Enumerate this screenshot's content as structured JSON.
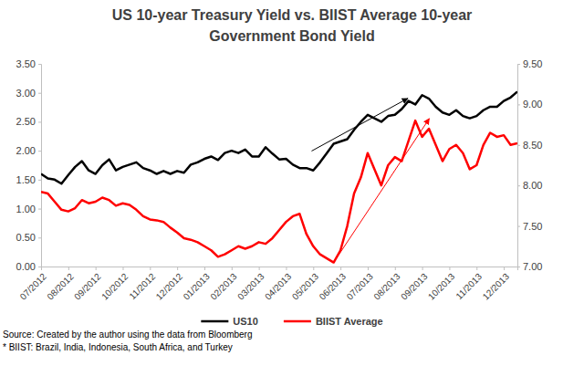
{
  "chart_data": {
    "type": "line",
    "title": "US 10-year Treasury Yield vs. BIIST Average 10-year\nGovernment Bond Yield",
    "notes": [
      "Source: Created by the author using the data from Bloomberg",
      "* BIIST: Brazil, India, Indonesia, South Africa, and Turkey"
    ],
    "categories": [
      "07/2012",
      null,
      null,
      null,
      "08/2012",
      null,
      null,
      null,
      "09/2012",
      null,
      null,
      null,
      "10/2012",
      null,
      null,
      null,
      "11/2012",
      null,
      null,
      null,
      "12/2012",
      null,
      null,
      null,
      "01/2013",
      null,
      null,
      null,
      "02/2013",
      null,
      null,
      null,
      "03/2013",
      null,
      null,
      null,
      "04/2013",
      null,
      null,
      null,
      "05/2013",
      null,
      null,
      null,
      "06/2013",
      null,
      null,
      null,
      "07/2013",
      null,
      null,
      null,
      "08/2013",
      null,
      null,
      null,
      "09/2013",
      null,
      null,
      null,
      "10/2013",
      null,
      null,
      null,
      "11/2013",
      null,
      null,
      null,
      "12/2013",
      null,
      null
    ],
    "series": [
      {
        "name": "US10",
        "color": "#000000",
        "values": [
          1.6,
          1.52,
          1.5,
          1.43,
          1.58,
          1.72,
          1.82,
          1.66,
          1.6,
          1.75,
          1.85,
          1.66,
          1.72,
          1.76,
          1.8,
          1.7,
          1.66,
          1.6,
          1.65,
          1.6,
          1.65,
          1.62,
          1.76,
          1.8,
          1.86,
          1.9,
          1.84,
          1.96,
          2.0,
          1.96,
          2.02,
          1.9,
          1.9,
          2.06,
          1.95,
          1.85,
          1.86,
          1.76,
          1.7,
          1.7,
          1.66,
          1.8,
          1.96,
          2.12,
          2.16,
          2.2,
          2.36,
          2.5,
          2.62,
          2.56,
          2.5,
          2.6,
          2.62,
          2.72,
          2.86,
          2.8,
          2.96,
          2.9,
          2.76,
          2.66,
          2.62,
          2.7,
          2.6,
          2.56,
          2.6,
          2.7,
          2.76,
          2.76,
          2.86,
          2.92,
          3.02
        ]
      },
      {
        "name": "BIIST Average",
        "color": "#ff0000",
        "axis": "y2",
        "values": [
          7.92,
          7.9,
          7.8,
          7.7,
          7.68,
          7.72,
          7.82,
          7.78,
          7.8,
          7.85,
          7.82,
          7.75,
          7.78,
          7.76,
          7.7,
          7.62,
          7.58,
          7.57,
          7.55,
          7.48,
          7.42,
          7.35,
          7.33,
          7.3,
          7.25,
          7.2,
          7.12,
          7.15,
          7.2,
          7.25,
          7.22,
          7.25,
          7.3,
          7.28,
          7.35,
          7.45,
          7.55,
          7.62,
          7.65,
          7.4,
          7.25,
          7.15,
          7.1,
          7.05,
          7.2,
          7.5,
          7.9,
          8.1,
          8.4,
          8.2,
          8.0,
          8.25,
          8.35,
          8.3,
          8.55,
          8.8,
          8.6,
          8.7,
          8.5,
          8.3,
          8.45,
          8.5,
          8.4,
          8.2,
          8.25,
          8.5,
          8.65,
          8.6,
          8.62,
          8.5,
          8.52
        ]
      }
    ],
    "ylim": [
      0,
      3.5
    ],
    "yticks": [
      {
        "value": 0,
        "label": "0.00"
      },
      {
        "value": 0.5,
        "label": "0.50"
      },
      {
        "value": 1,
        "label": "1.00"
      },
      {
        "value": 1.5,
        "label": "1.50"
      },
      {
        "value": 2,
        "label": "2.00"
      },
      {
        "value": 2.5,
        "label": "2.50"
      },
      {
        "value": 3,
        "label": "3.00"
      },
      {
        "value": 3.5,
        "label": "3.50"
      }
    ],
    "y2lim": [
      7,
      9.5
    ],
    "y2ticks": [
      {
        "value": 7,
        "label": "7.00"
      },
      {
        "value": 7.5,
        "label": "7.50"
      },
      {
        "value": 8,
        "label": "8.00"
      },
      {
        "value": 8.5,
        "label": "8.50"
      },
      {
        "value": 9,
        "label": "9.00"
      },
      {
        "value": 9.5,
        "label": "9.50"
      }
    ],
    "grid": false,
    "legend": "bottom"
  }
}
